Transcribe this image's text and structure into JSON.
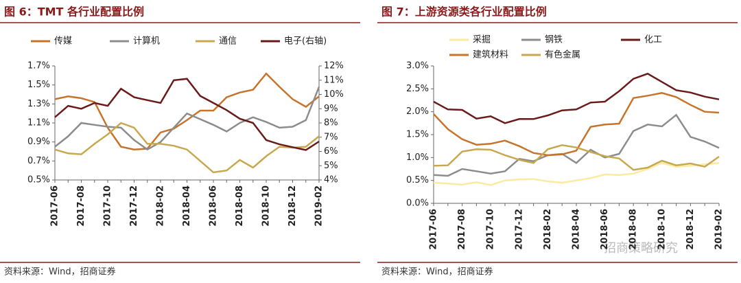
{
  "chart_data": [
    {
      "type": "line",
      "title": "图 6：TMT 各行业配置比例",
      "source": "资料来源：Wind，招商证券",
      "categories": [
        "2017-06",
        null,
        "2017-08",
        null,
        "2017-10",
        null,
        "2017-12",
        null,
        "2018-02",
        null,
        "2018-04",
        null,
        "2018-06",
        null,
        "2018-08",
        null,
        "2018-10",
        null,
        "2018-12",
        null,
        "2019-02"
      ],
      "ylim": [
        0.5,
        1.7
      ],
      "yticks": [
        {
          "value": 0.5,
          "label": "0.5%"
        },
        {
          "value": 0.7,
          "label": "0.7%"
        },
        {
          "value": 0.9,
          "label": "0.9%"
        },
        {
          "value": 1.1,
          "label": "1.1%"
        },
        {
          "value": 1.3,
          "label": "1.3%"
        },
        {
          "value": 1.5,
          "label": "1.5%"
        },
        {
          "value": 1.7,
          "label": "1.7%"
        }
      ],
      "y2lim": [
        4,
        12
      ],
      "y2ticks": [
        {
          "value": 4,
          "label": "4%"
        },
        {
          "value": 5,
          "label": "5%"
        },
        {
          "value": 6,
          "label": "6%"
        },
        {
          "value": 7,
          "label": "7%"
        },
        {
          "value": 8,
          "label": "8%"
        },
        {
          "value": 9,
          "label": "9%"
        },
        {
          "value": 10,
          "label": "10%"
        },
        {
          "value": 11,
          "label": "11%"
        },
        {
          "value": 12,
          "label": "12%"
        }
      ],
      "series": [
        {
          "name": "传媒",
          "color": "#c8732a",
          "values": [
            1.35,
            1.38,
            1.36,
            1.32,
            1.05,
            0.85,
            0.82,
            0.83,
            1.0,
            1.04,
            1.13,
            1.23,
            1.23,
            1.37,
            1.42,
            1.45,
            1.62,
            1.48,
            1.35,
            1.27,
            1.38
          ]
        },
        {
          "name": "计算机",
          "color": "#8c8c8c",
          "values": [
            0.85,
            0.96,
            1.1,
            1.08,
            1.06,
            1.05,
            0.92,
            0.82,
            0.9,
            1.05,
            1.2,
            1.14,
            1.08,
            1.01,
            1.1,
            1.16,
            1.11,
            1.05,
            1.06,
            1.13,
            1.48
          ]
        },
        {
          "name": "通信",
          "color": "#c8a84e",
          "values": [
            0.82,
            0.78,
            0.77,
            0.88,
            0.98,
            1.1,
            1.05,
            0.88,
            0.88,
            0.86,
            0.82,
            0.7,
            0.58,
            0.6,
            0.71,
            0.63,
            0.75,
            0.85,
            0.84,
            0.85,
            0.96
          ]
        },
        {
          "name": "电子(右轴)",
          "color": "#6b1a1a",
          "axis": "y2",
          "values": [
            8.4,
            9.2,
            9.0,
            9.4,
            9.2,
            10.4,
            9.8,
            9.6,
            9.4,
            11.0,
            11.1,
            9.9,
            9.4,
            8.9,
            8.3,
            8.0,
            6.8,
            6.5,
            6.3,
            6.1,
            6.7
          ]
        }
      ]
    },
    {
      "type": "line",
      "title": "图 7：上游资源类各行业配置比例",
      "source": "资料来源：Wind，招商证券",
      "categories": [
        "2017-06",
        null,
        "2017-08",
        null,
        "2017-10",
        null,
        "2017-12",
        null,
        "2018-02",
        null,
        "2018-04",
        null,
        "2018-06",
        null,
        "2018-08",
        null,
        "2018-10",
        null,
        "2018-12",
        null,
        "2019-02"
      ],
      "ylim": [
        0,
        3
      ],
      "yticks": [
        {
          "value": 0,
          "label": "0.0%"
        },
        {
          "value": 0.5,
          "label": "0.5%"
        },
        {
          "value": 1,
          "label": "1.0%"
        },
        {
          "value": 1.5,
          "label": "1.5%"
        },
        {
          "value": 2,
          "label": "2.0%"
        },
        {
          "value": 2.5,
          "label": "2.5%"
        },
        {
          "value": 3,
          "label": "3.0%"
        }
      ],
      "series": [
        {
          "name": "采掘",
          "color": "#fbeaa0",
          "values": [
            0.45,
            0.43,
            0.41,
            0.46,
            0.4,
            0.5,
            0.52,
            0.53,
            0.48,
            0.45,
            0.5,
            0.55,
            0.63,
            0.62,
            0.65,
            0.75,
            0.88,
            0.8,
            0.82,
            0.85,
            0.88
          ]
        },
        {
          "name": "钢铁",
          "color": "#8c8c8c",
          "values": [
            0.62,
            0.6,
            0.75,
            0.7,
            0.65,
            0.7,
            0.97,
            0.92,
            1.05,
            1.08,
            0.88,
            1.17,
            1.0,
            1.08,
            1.58,
            1.72,
            1.68,
            1.93,
            1.45,
            1.35,
            1.21
          ]
        },
        {
          "name": "化工",
          "color": "#6b1a1a",
          "values": [
            2.22,
            2.05,
            2.04,
            1.85,
            1.9,
            1.75,
            1.84,
            1.84,
            1.92,
            2.03,
            2.05,
            2.2,
            2.22,
            2.45,
            2.72,
            2.83,
            2.65,
            2.47,
            2.42,
            2.33,
            2.27
          ]
        },
        {
          "name": "建筑材料",
          "color": "#c8732a",
          "values": [
            1.95,
            1.62,
            1.4,
            1.28,
            1.3,
            1.37,
            1.25,
            1.1,
            1.05,
            1.07,
            1.15,
            1.67,
            1.72,
            1.74,
            2.3,
            2.35,
            2.41,
            2.32,
            2.15,
            2.0,
            1.98
          ]
        },
        {
          "name": "有色金属",
          "color": "#c8a84e",
          "values": [
            0.82,
            0.83,
            1.13,
            1.18,
            1.17,
            1.05,
            0.95,
            0.88,
            1.18,
            1.27,
            1.22,
            1.12,
            1.03,
            0.98,
            0.73,
            0.78,
            0.93,
            0.83,
            0.87,
            0.8,
            1.02
          ]
        }
      ]
    }
  ],
  "watermark": "招商策略研究"
}
